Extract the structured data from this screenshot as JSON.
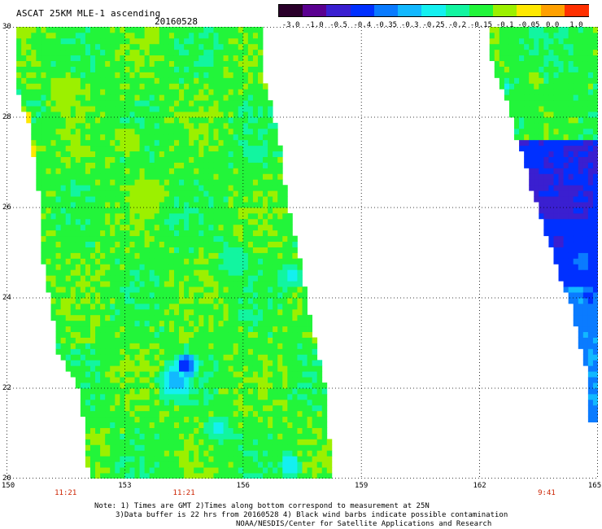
{
  "title": "ASCAT 25KM MLE-1 ascending",
  "date": "20160528",
  "colorbar": {
    "labels": [
      "-3.0",
      "-1.0",
      "-0.5",
      "-0.4",
      "-0.35",
      "-0.3",
      "-0.25",
      "-0.2",
      "-0.15",
      "-0.1",
      "-0.05",
      "0.0",
      "1.0"
    ],
    "colors": [
      "#2a002a",
      "#5a0090",
      "#3a1fd0",
      "#0030ff",
      "#0a7bff",
      "#12b8ff",
      "#14f0f0",
      "#12f5a0",
      "#22f53a",
      "#9cf000",
      "#ffe800",
      "#ffa000",
      "#ff3000"
    ]
  },
  "chart_data": {
    "type": "heatmap",
    "title": "ASCAT 25KM MLE-1 ascending",
    "subtitle": "20160528",
    "x_range": [
      150,
      165
    ],
    "y_range": [
      20,
      30
    ],
    "x_ticks": [
      150,
      153,
      156,
      159,
      162,
      165
    ],
    "y_ticks": [
      20,
      22,
      24,
      26,
      28,
      30
    ],
    "grid": true,
    "swaths": [
      {
        "name": "west",
        "time": "11:21",
        "polygon": [
          [
            150.2,
            29.95
          ],
          [
            156.45,
            29.95
          ],
          [
            156.55,
            28.8
          ],
          [
            156.9,
            27.6
          ],
          [
            157.1,
            26.3
          ],
          [
            157.4,
            25.0
          ],
          [
            157.7,
            23.6
          ],
          [
            158.05,
            22.2
          ],
          [
            158.2,
            20.7
          ],
          [
            158.2,
            20.0
          ],
          [
            152.2,
            20.0
          ],
          [
            152.0,
            20.4
          ],
          [
            151.9,
            21.9
          ],
          [
            151.3,
            22.8
          ],
          [
            151.2,
            23.5
          ],
          [
            151.1,
            24.0
          ],
          [
            150.9,
            25.0
          ],
          [
            150.9,
            25.9
          ],
          [
            150.8,
            26.4
          ],
          [
            150.7,
            27.0
          ],
          [
            150.6,
            27.8
          ],
          [
            150.3,
            28.5
          ],
          [
            150.2,
            29.2
          ]
        ],
        "base_value": -0.17,
        "features": [
          {
            "lon": 154.55,
            "lat": 22.5,
            "value": -0.4,
            "radius": 0.35
          },
          {
            "lon": 154.3,
            "lat": 22.15,
            "value": -0.3,
            "radius": 0.55
          },
          {
            "lon": 155.4,
            "lat": 21.1,
            "value": -0.25,
            "radius": 0.4
          },
          {
            "lon": 157.2,
            "lat": 20.3,
            "value": -0.28,
            "radius": 0.35
          },
          {
            "lon": 157.2,
            "lat": 24.5,
            "value": -0.25,
            "radius": 0.4
          },
          {
            "lon": 155.8,
            "lat": 24.8,
            "value": -0.22,
            "radius": 0.5
          },
          {
            "lon": 156.3,
            "lat": 27.2,
            "value": -0.22,
            "radius": 0.3
          },
          {
            "lon": 151.2,
            "lat": 20.9,
            "value": -0.02,
            "radius": 0.25
          },
          {
            "lon": 151.6,
            "lat": 20.2,
            "value": -0.1,
            "radius": 0.3
          },
          {
            "lon": 150.5,
            "lat": 27.3,
            "value": -0.05,
            "radius": 0.35
          },
          {
            "lon": 150.3,
            "lat": 25.6,
            "value": -0.05,
            "radius": 0.2
          },
          {
            "lon": 150.7,
            "lat": 24.4,
            "value": -0.08,
            "radius": 0.2
          },
          {
            "lon": 150.45,
            "lat": 28.0,
            "value": -0.06,
            "radius": 0.25
          },
          {
            "lon": 151.5,
            "lat": 28.6,
            "value": -0.1,
            "radius": 0.4
          },
          {
            "lon": 153.1,
            "lat": 27.5,
            "value": -0.1,
            "radius": 0.4
          },
          {
            "lon": 153.5,
            "lat": 26.3,
            "value": -0.11,
            "radius": 0.5
          },
          {
            "lon": 154.2,
            "lat": 25.7,
            "value": -0.2,
            "radius": 0.4
          },
          {
            "lon": 155.1,
            "lat": 29.3,
            "value": -0.2,
            "radius": 0.5
          }
        ]
      },
      {
        "name": "east",
        "time": "9:41",
        "polygon": [
          [
            162.2,
            29.95
          ],
          [
            165.0,
            29.95
          ],
          [
            165.0,
            21.2
          ],
          [
            164.8,
            21.3
          ],
          [
            164.8,
            22.1
          ],
          [
            164.55,
            22.9
          ],
          [
            164.35,
            23.8
          ],
          [
            164.05,
            24.4
          ],
          [
            163.8,
            25.1
          ],
          [
            163.6,
            25.7
          ],
          [
            163.35,
            26.3
          ],
          [
            163.1,
            27.1
          ],
          [
            162.9,
            27.6
          ],
          [
            162.8,
            28.1
          ],
          [
            162.6,
            28.6
          ],
          [
            162.4,
            29.0
          ],
          [
            162.3,
            29.3
          ]
        ],
        "regions": [
          {
            "value": -0.18,
            "lat_min": 27.45,
            "lat_max": 29.95
          },
          {
            "value": -0.5,
            "lat_min": 25.7,
            "lat_max": 27.45
          },
          {
            "value": -0.45,
            "lat_min": 24.2,
            "lat_max": 25.7
          },
          {
            "value": -0.37,
            "lat_min": 21.2,
            "lat_max": 24.2
          }
        ],
        "features": [
          {
            "lon": 163.4,
            "lat": 28.85,
            "value": -0.1,
            "radius": 0.25
          },
          {
            "lon": 162.7,
            "lat": 28.7,
            "value": -0.25,
            "radius": 0.18
          },
          {
            "lon": 163.0,
            "lat": 26.3,
            "value": -1.0,
            "radius": 0.55
          },
          {
            "lon": 164.8,
            "lat": 26.3,
            "value": -0.5,
            "radius": 0.25
          },
          {
            "lon": 164.6,
            "lat": 24.8,
            "value": -0.37,
            "radius": 0.3
          },
          {
            "lon": 164.0,
            "lat": 25.3,
            "value": -0.5,
            "radius": 0.35
          }
        ]
      }
    ]
  },
  "axes": {
    "lon_labels": [
      "150",
      "153",
      "156",
      "159",
      "162",
      "165"
    ],
    "lat_labels": [
      "30",
      "28",
      "26",
      "24",
      "22",
      "20"
    ],
    "time_labels": [
      {
        "text": "11:21",
        "lon": 151.5
      },
      {
        "text": "11:21",
        "lon": 154.5
      },
      {
        "text": "9:41",
        "lon": 163.7
      }
    ]
  },
  "notes": {
    "line1": "Note: 1) Times are GMT 2)Times along bottom correspond to measurement at 25N",
    "line2": "3)Data buffer is 22 hrs from 20160528 4) Black wind barbs indicate possible contamination",
    "line3": "NOAA/NESDIS/Center for Satellite Applications and Research"
  }
}
